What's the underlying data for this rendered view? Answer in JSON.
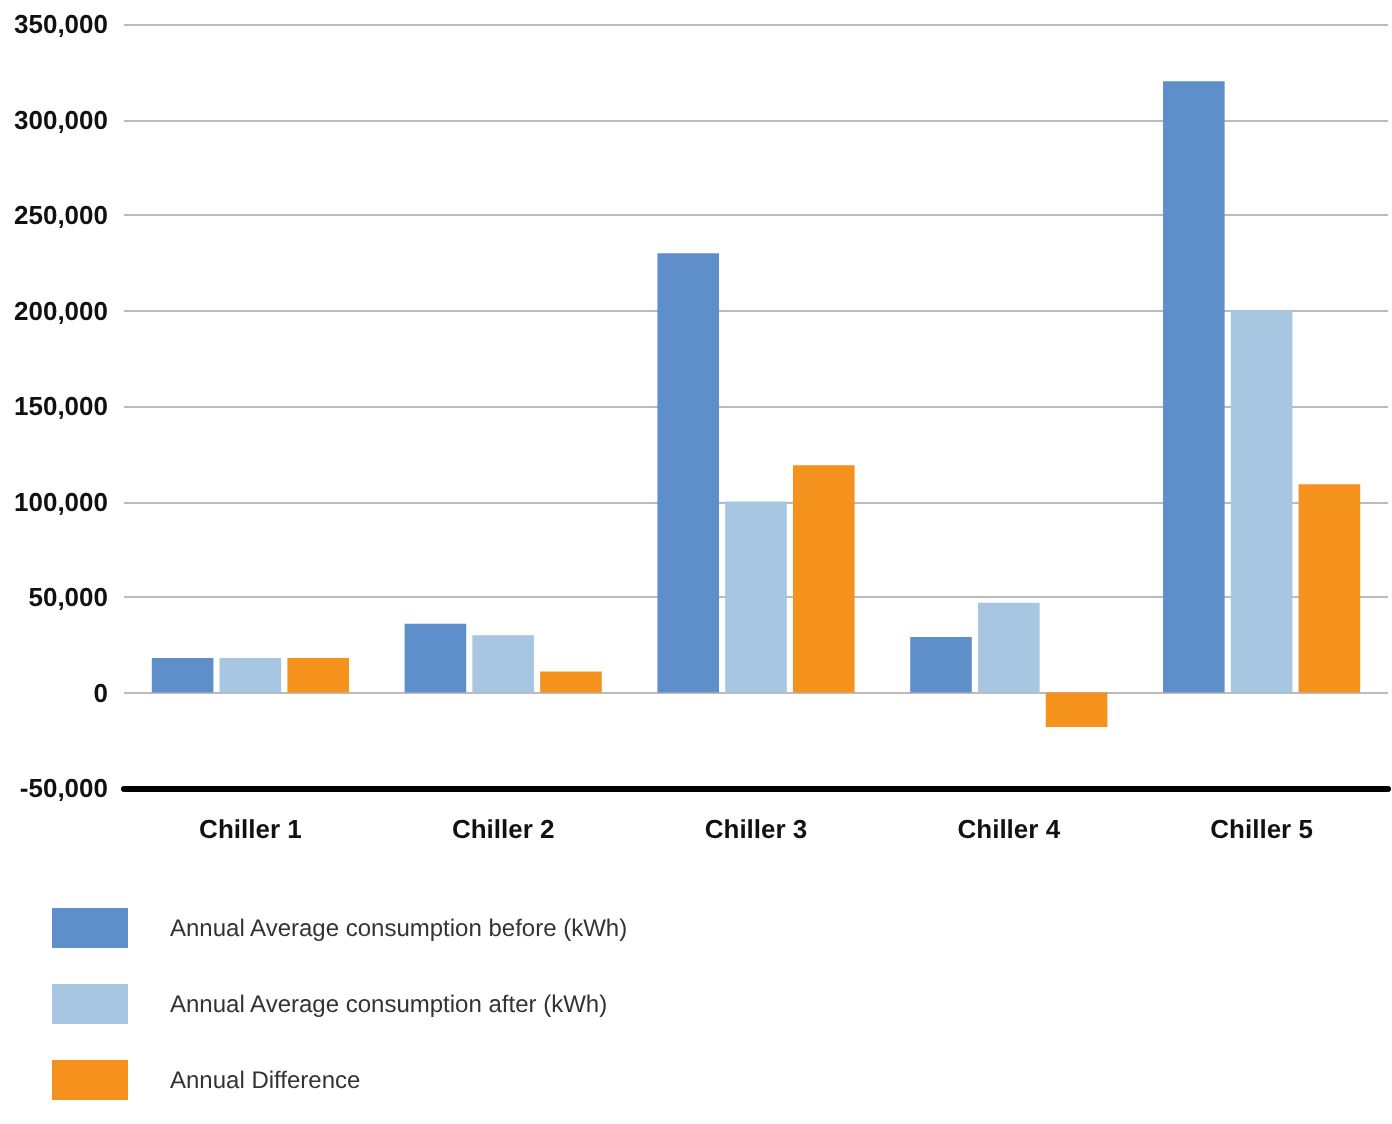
{
  "chart_data": {
    "type": "bar",
    "categories": [
      "Chiller 1",
      "Chiller 2",
      "Chiller 3",
      "Chiller 4",
      "Chiller 5"
    ],
    "series": [
      {
        "name": "Annual Average consumption before (kWh)",
        "color": "#5f8fcb",
        "values": [
          18000,
          36000,
          230000,
          29000,
          320000
        ]
      },
      {
        "name": "Annual Average consumption after (kWh)",
        "color": "#a6c6e1",
        "values": [
          18000,
          30000,
          100000,
          47000,
          200000
        ]
      },
      {
        "name": "Annual Difference",
        "color": "#f5921e",
        "values": [
          18000,
          11000,
          119000,
          -18000,
          109000
        ]
      }
    ],
    "ylim": [
      -50000,
      350000
    ],
    "yticks": [
      {
        "value": -50000,
        "label": "-50,000"
      },
      0,
      {
        "value": 50000,
        "label": "50,000"
      },
      {
        "value": 100000,
        "label": "100,000"
      },
      {
        "value": 150000,
        "label": "150,000"
      },
      {
        "value": 200000,
        "label": "200,000"
      },
      {
        "value": 250000,
        "label": "250,000"
      },
      {
        "value": 300000,
        "label": "300,000"
      },
      {
        "value": 350000,
        "label": "350,000"
      }
    ],
    "grid": "y",
    "legend": "bottom left"
  }
}
